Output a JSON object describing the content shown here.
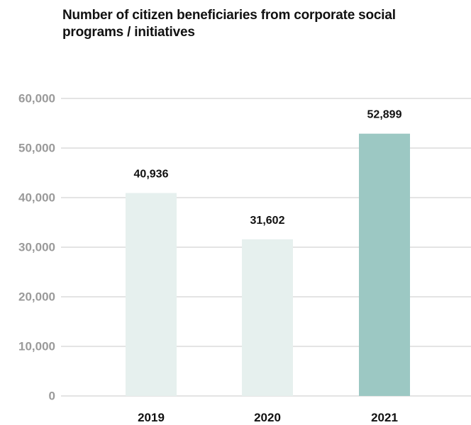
{
  "chart_data": {
    "type": "bar",
    "title": "Number of citizen beneficiaries from corporate social programs / initiatives",
    "categories": [
      "2019",
      "2020",
      "2021"
    ],
    "values": [
      40936,
      31602,
      52899
    ],
    "data_labels": [
      "40,936",
      "31,602",
      "52,899"
    ],
    "xlabel": "",
    "ylabel": "",
    "ylim": [
      0,
      60000
    ],
    "yticks": [
      0,
      10000,
      20000,
      30000,
      40000,
      50000,
      60000
    ],
    "ytick_labels": [
      "0",
      "10,000",
      "20,000",
      "30,000",
      "40,000",
      "50,000",
      "60,000"
    ],
    "grid": true,
    "legend": "none",
    "bar_colors": [
      "#e6f0ee",
      "#e6f0ee",
      "#9cc8c3"
    ]
  },
  "colors": {
    "gridline": "#c9c9c9",
    "tick_label": "#9a9a9a",
    "text": "#111111"
  }
}
